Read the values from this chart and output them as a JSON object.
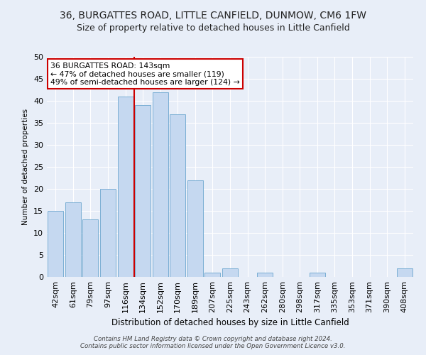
{
  "title1": "36, BURGATTES ROAD, LITTLE CANFIELD, DUNMOW, CM6 1FW",
  "title2": "Size of property relative to detached houses in Little Canfield",
  "xlabel": "Distribution of detached houses by size in Little Canfield",
  "ylabel": "Number of detached properties",
  "categories": [
    "42sqm",
    "61sqm",
    "79sqm",
    "97sqm",
    "116sqm",
    "134sqm",
    "152sqm",
    "170sqm",
    "189sqm",
    "207sqm",
    "225sqm",
    "243sqm",
    "262sqm",
    "280sqm",
    "298sqm",
    "317sqm",
    "335sqm",
    "353sqm",
    "371sqm",
    "390sqm",
    "408sqm"
  ],
  "values": [
    15,
    17,
    13,
    20,
    41,
    39,
    42,
    37,
    22,
    1,
    2,
    0,
    1,
    0,
    0,
    1,
    0,
    0,
    0,
    0,
    2
  ],
  "bar_color": "#c5d8f0",
  "bar_edge_color": "#7aaed4",
  "vline_color": "#cc0000",
  "annotation_text": "36 BURGATTES ROAD: 143sqm\n← 47% of detached houses are smaller (119)\n49% of semi-detached houses are larger (124) →",
  "annotation_box_color": "#ffffff",
  "annotation_box_edge_color": "#cc0000",
  "footnote": "Contains HM Land Registry data © Crown copyright and database right 2024.\nContains public sector information licensed under the Open Government Licence v3.0.",
  "ylim": [
    0,
    50
  ],
  "background_color": "#e8eef8",
  "plot_bg_color": "#e8eef8",
  "grid_color": "#ffffff",
  "title_fontsize": 10,
  "subtitle_fontsize": 9
}
